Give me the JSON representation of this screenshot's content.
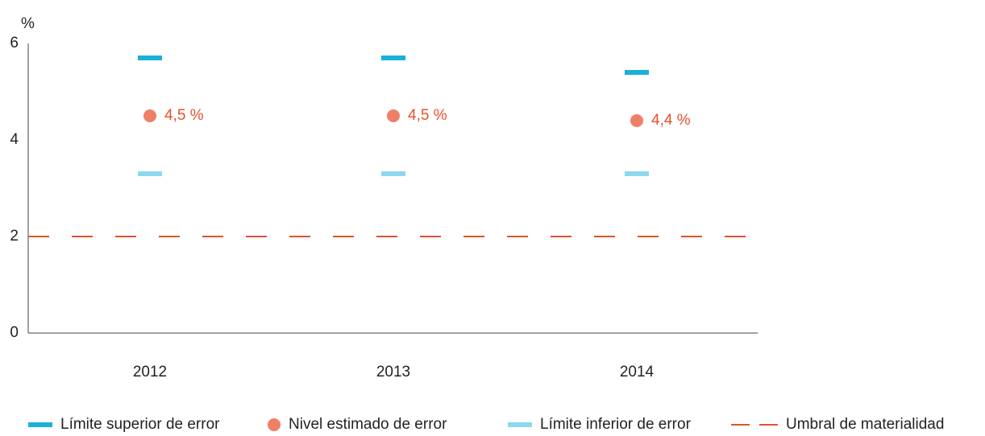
{
  "chart_data": {
    "type": "point",
    "y_label": "%",
    "categories": [
      "2012",
      "2013",
      "2014"
    ],
    "ylim": [
      0,
      6
    ],
    "yticks": [
      0,
      2,
      4,
      6
    ],
    "series": [
      {
        "name": "Límite superior de error",
        "color": "#1ab0d8",
        "marker": "dash",
        "values": [
          5.7,
          5.7,
          5.4
        ]
      },
      {
        "name": "Nivel estimado de error",
        "color": "#f07f68",
        "marker": "circle",
        "values": [
          4.5,
          4.5,
          4.4
        ],
        "value_labels": [
          "4,5 %",
          "4,5 %",
          "4,4 %"
        ]
      },
      {
        "name": "Límite inferior de error",
        "color": "#8dd8ef",
        "marker": "dash",
        "values": [
          3.3,
          3.3,
          3.3
        ]
      }
    ],
    "reference_line": {
      "name": "Umbral de materialidad",
      "value": 2,
      "color": "#e0522e",
      "style": "dashed"
    }
  }
}
